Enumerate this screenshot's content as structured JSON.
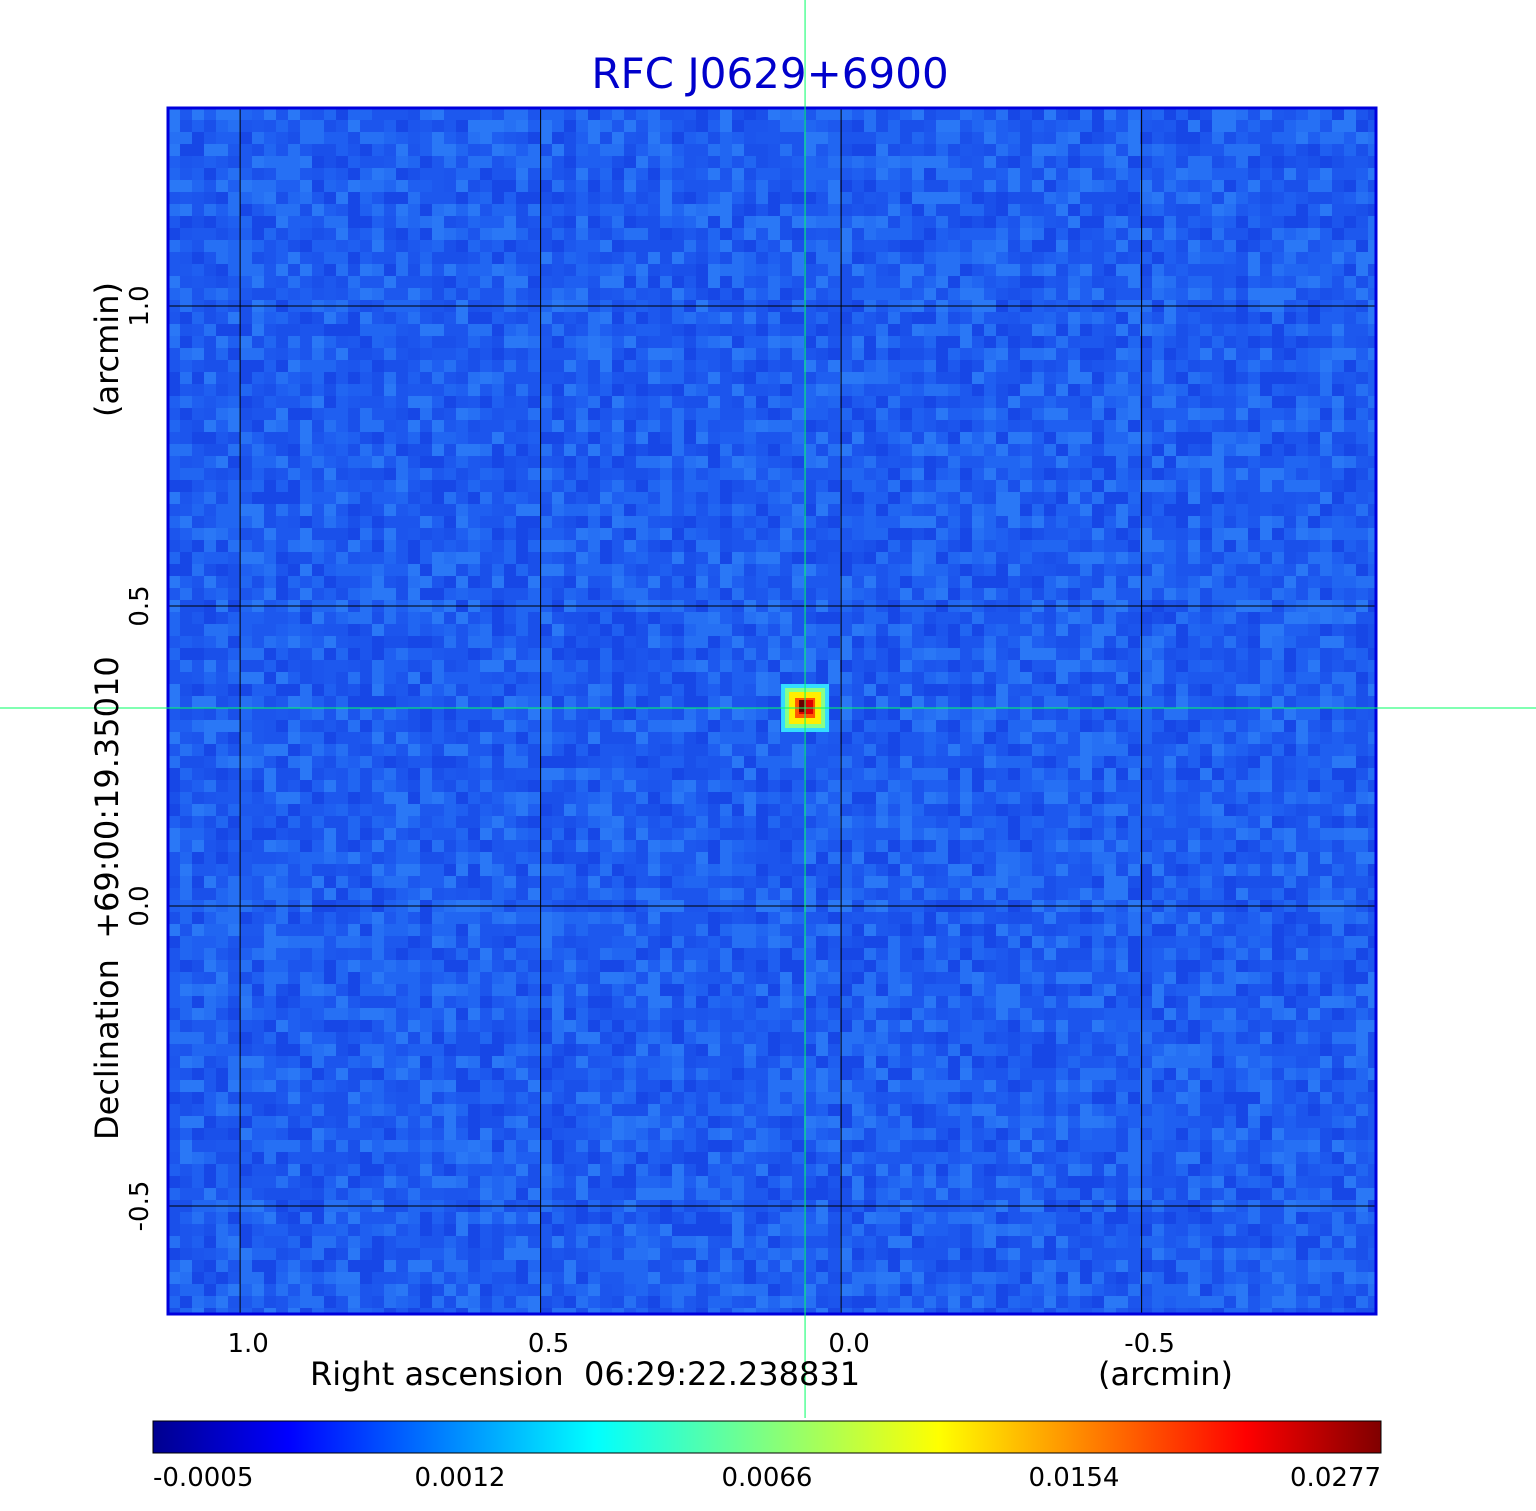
{
  "chart_data": {
    "type": "heatmap",
    "title": "RFC J0629+6900",
    "xlabel": "Right ascension  06:29:22.238831",
    "xunit": "(arcmin)",
    "ylabel": "Declination  +69:00:19.35010",
    "yunit": "(arcmin)",
    "x_range": [
      1.12,
      -0.89
    ],
    "y_range": [
      -0.68,
      1.33
    ],
    "x_ticks": [
      1.0,
      0.5,
      0.0,
      -0.5
    ],
    "x_tick_labels": [
      "1.0",
      "0.5",
      "0.0",
      "-0.5"
    ],
    "y_ticks": [
      -0.5,
      0.0,
      0.5,
      1.0
    ],
    "y_tick_labels": [
      "-0.5",
      "0.0",
      "0.5",
      "1.0"
    ],
    "grid": true,
    "crosshair": {
      "x": 0.06,
      "y": 0.33
    },
    "source": {
      "x": 0.06,
      "y": 0.33,
      "peak": 0.0277
    },
    "colorbar": {
      "colormap": "jet",
      "ticks": [
        -0.0005,
        0.0012,
        0.0066,
        0.0154,
        0.0277
      ],
      "tick_labels": [
        "-0.0005",
        "0.0012",
        "0.0066",
        "0.0154",
        "0.0277"
      ]
    },
    "value_range": [
      -0.0005,
      0.0277
    ]
  },
  "colors": {
    "title": "#0000cc",
    "frame": "#0000dd",
    "grid": "#000000",
    "crosshair": "#00ff66",
    "background_field": "#1f5cf0"
  }
}
